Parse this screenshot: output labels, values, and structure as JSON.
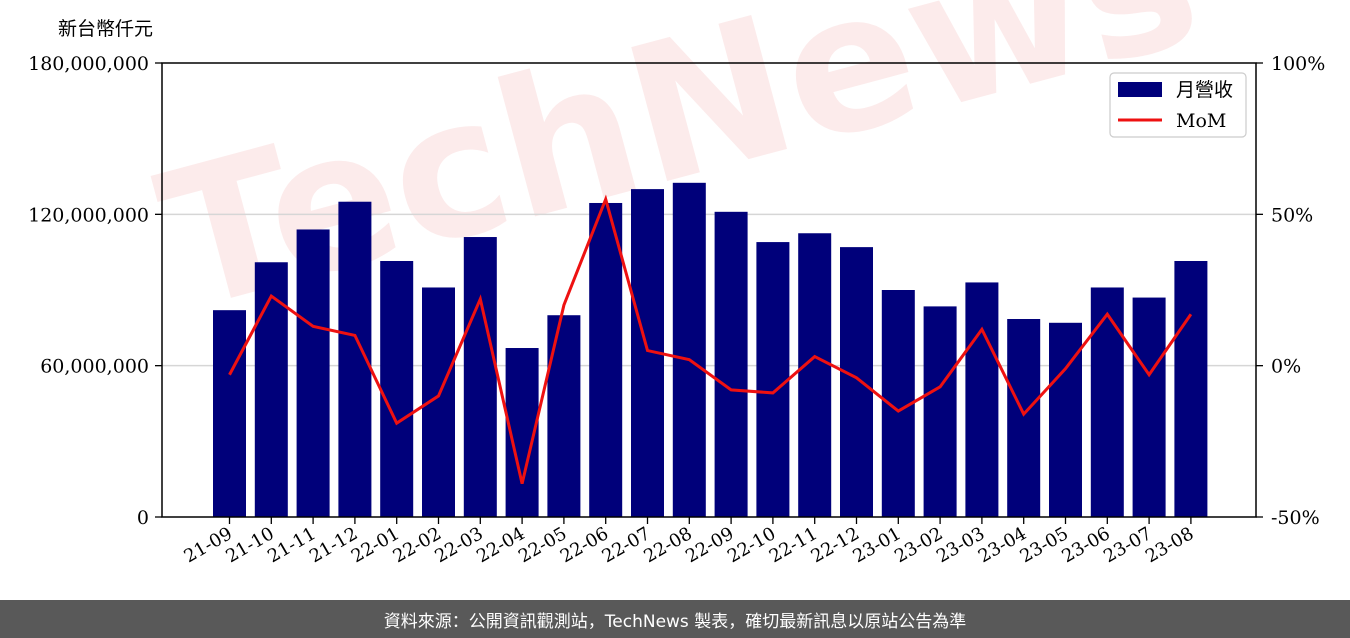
{
  "chart_data": {
    "type": "bar",
    "ylabel": "新台幣仟元",
    "categories": [
      "21-09",
      "21-10",
      "21-11",
      "21-12",
      "22-01",
      "22-02",
      "22-03",
      "22-04",
      "22-05",
      "22-06",
      "22-07",
      "22-08",
      "22-09",
      "22-10",
      "22-11",
      "22-12",
      "23-01",
      "23-02",
      "23-03",
      "23-04",
      "23-05",
      "23-06",
      "23-07",
      "23-08"
    ],
    "series": [
      {
        "name": "月營收",
        "type": "bar",
        "axis": "left",
        "color": "#00007a",
        "values": [
          82000000,
          101000000,
          114000000,
          125000000,
          101500000,
          91000000,
          111000000,
          67000000,
          80000000,
          124500000,
          130000000,
          132500000,
          121000000,
          109000000,
          112500000,
          107000000,
          90000000,
          83500000,
          93000000,
          78500000,
          77000000,
          91000000,
          87000000,
          101500000
        ]
      },
      {
        "name": "MoM",
        "type": "line",
        "axis": "right",
        "color": "#ee1111",
        "values": [
          -3,
          23,
          13,
          10,
          -19,
          -10,
          22,
          -39,
          20,
          55,
          5,
          2,
          -8,
          -9,
          3,
          -4,
          -15,
          -7,
          12,
          -16,
          -1,
          17,
          -3,
          17
        ]
      }
    ],
    "ylim": [
      0,
      180000000
    ],
    "yticks": [
      "0",
      "60,000,000",
      "120,000,000",
      "180,000,000"
    ],
    "ytick_values": [
      0,
      60000000,
      120000000,
      180000000
    ],
    "y2lim": [
      -50,
      100
    ],
    "y2ticks": [
      "-50%",
      "0%",
      "50%",
      "100%"
    ],
    "y2tick_values": [
      -50,
      0,
      50,
      100
    ],
    "grid": true,
    "legend": "top-right"
  },
  "watermark": "TechNews",
  "footer": "資料來源：公開資訊觀測站，TechNews 製表，確切最新訊息以原站公告為準"
}
